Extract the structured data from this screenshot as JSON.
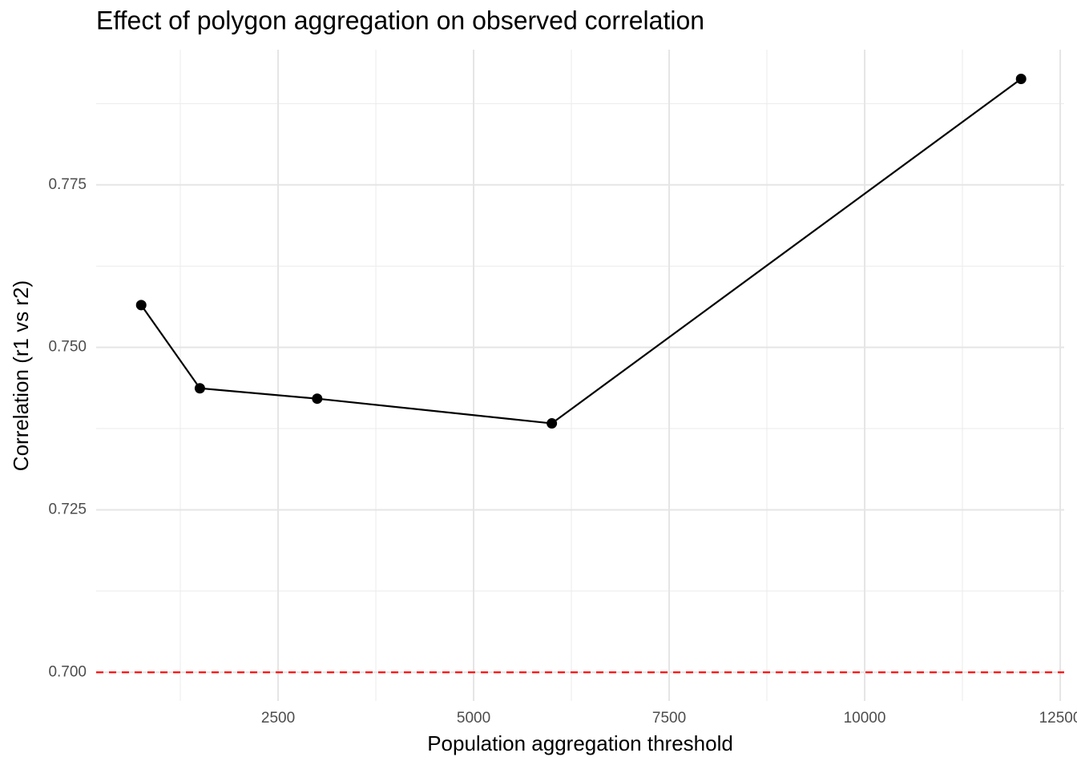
{
  "chart_data": {
    "type": "line",
    "title": "Effect of polygon aggregation on observed correlation",
    "x_label": "Population aggregation threshold",
    "y_label": "Correlation (r1 vs r2)",
    "x": [
      750,
      1500,
      3000,
      6000,
      12000
    ],
    "series": [
      {
        "color": "#000000",
        "values": [
          0.7565,
          0.7437,
          0.7421,
          0.7383,
          0.7913
        ]
      }
    ],
    "xlim": [
      174,
      12551
    ],
    "ylim": [
      0.6956,
      0.7958
    ],
    "xticks": [
      2500,
      5000,
      7500,
      10000,
      12500
    ],
    "yticks": [
      {
        "value": 0.7,
        "label": "0.700"
      },
      {
        "value": 0.725,
        "label": "0.725"
      },
      {
        "value": 0.75,
        "label": "0.750"
      },
      {
        "value": 0.775,
        "label": "0.775"
      }
    ],
    "x_minor_ticks": [
      1250,
      3750,
      6250,
      8750,
      11250
    ],
    "y_minor_ticks": [
      0.7125,
      0.7375,
      0.7625,
      0.7875
    ],
    "hline": {
      "value": 0.7,
      "color": "#ff0000"
    },
    "grid": true
  }
}
